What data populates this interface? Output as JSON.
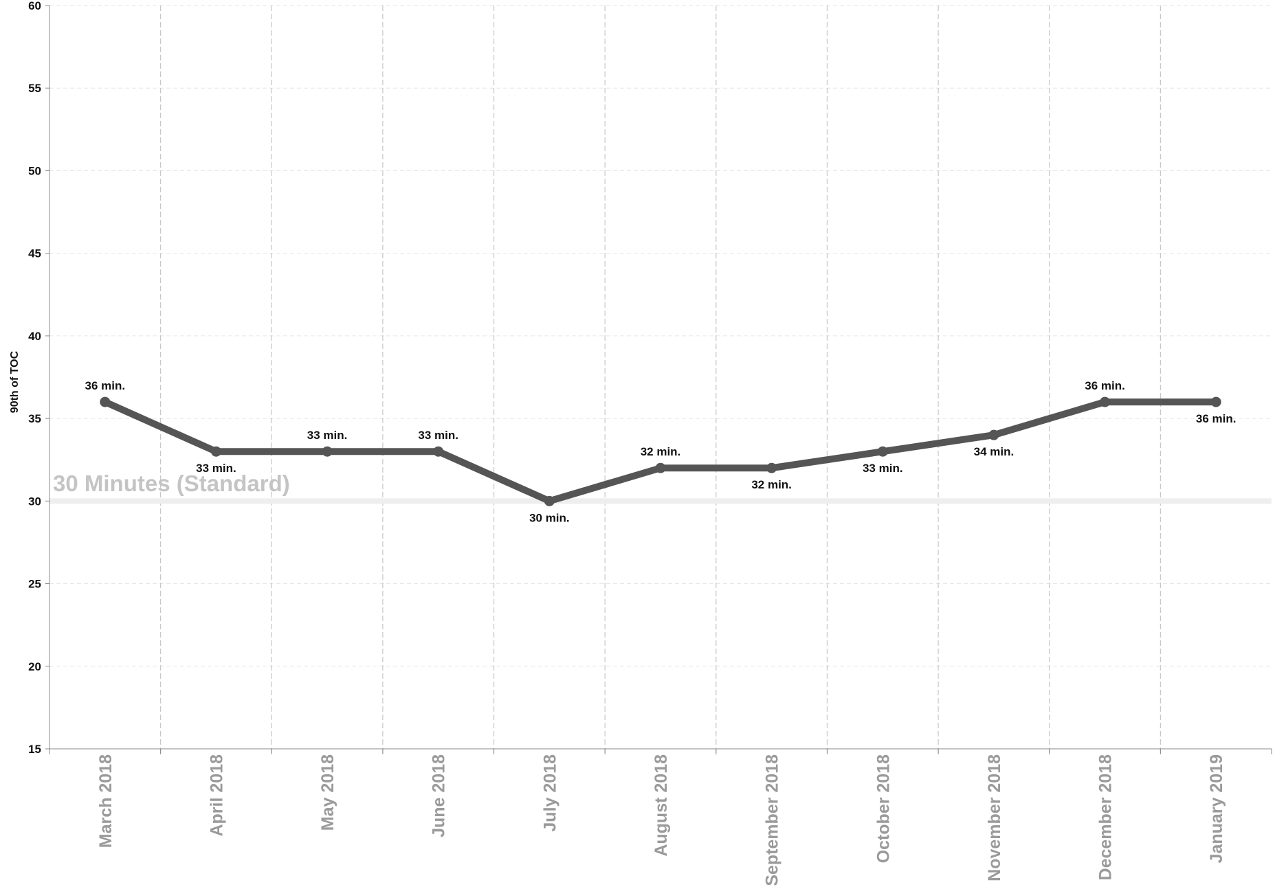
{
  "chart_data": {
    "type": "line",
    "ylabel": "90th of TOC",
    "xlabel": "",
    "ylim": [
      15,
      60
    ],
    "yticks": [
      15,
      20,
      25,
      30,
      35,
      40,
      45,
      50,
      55,
      60
    ],
    "grid": true,
    "categories": [
      "March 2018",
      "April 2018",
      "May 2018",
      "June 2018",
      "July 2018",
      "August 2018",
      "September 2018",
      "October 2018",
      "November 2018",
      "December 2018",
      "January 2019"
    ],
    "series": [
      {
        "values": [
          36,
          33,
          33,
          33,
          30,
          32,
          32,
          33,
          34,
          36,
          36
        ],
        "labels": [
          "36 min.",
          "33 min.",
          "33 min.",
          "33 min.",
          "30 min.",
          "32 min.",
          "32 min.",
          "33 min.",
          "34 min.",
          "36 min.",
          "36 min."
        ],
        "color": "#555555"
      }
    ],
    "reference_line": {
      "value": 30,
      "label": "30 Minutes (Standard)",
      "color": "#eeeeee",
      "label_color": "#c4c4c4"
    },
    "colors": {
      "line": "#555555",
      "grid": "#e6e6e6",
      "divider": "#c6c6c6",
      "tick_label": "#9a9a9a"
    }
  }
}
